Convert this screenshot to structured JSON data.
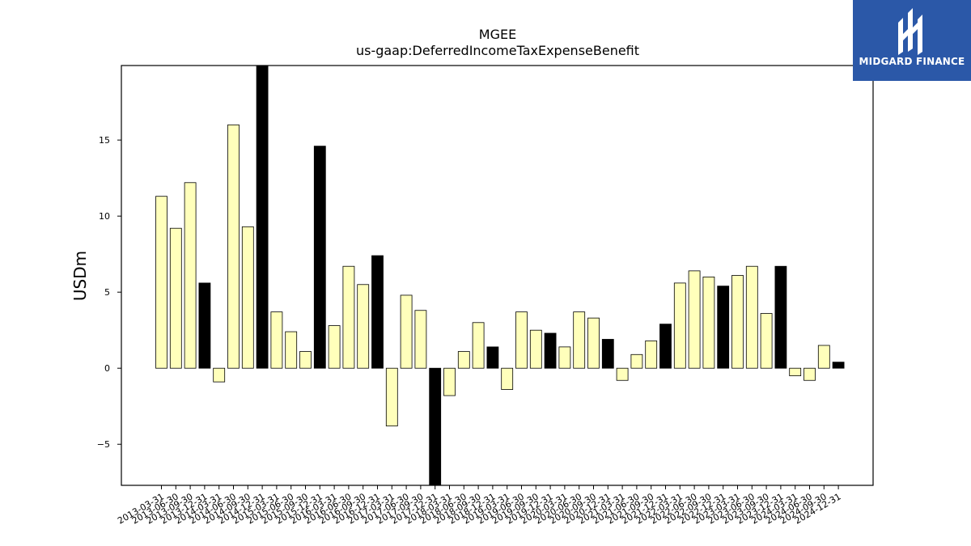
{
  "chart_data": {
    "type": "bar",
    "title": "MGEE",
    "subtitle": "us-gaap:DeferredIncomeTaxExpenseBenefit",
    "ylabel": "USDm",
    "xlabel": "",
    "ylim": [
      -7.7,
      19.9
    ],
    "yticks": [
      -5,
      0,
      5,
      10,
      15
    ],
    "ytick_labels": [
      "−5",
      "0",
      "5",
      "10",
      "15"
    ],
    "grid": false,
    "colors": {
      "quarter": "#ffffbb",
      "annual": "#000000",
      "edge": "#000000"
    },
    "categories": [
      "2013-03-31",
      "2013-06-30",
      "2013-09-30",
      "2013-12-31",
      "2014-03-31",
      "2014-06-30",
      "2014-09-30",
      "2014-12-31",
      "2015-03-31",
      "2015-06-30",
      "2015-09-30",
      "2015-12-31",
      "2016-03-31",
      "2016-06-30",
      "2016-09-30",
      "2016-12-31",
      "2017-03-31",
      "2017-06-30",
      "2017-09-30",
      "2017-12-31",
      "2018-03-31",
      "2018-06-30",
      "2018-09-30",
      "2018-12-31",
      "2019-03-31",
      "2019-06-30",
      "2019-09-30",
      "2019-12-31",
      "2020-03-31",
      "2020-06-30",
      "2020-09-30",
      "2020-12-31",
      "2021-03-31",
      "2021-06-30",
      "2021-09-30",
      "2021-12-31",
      "2022-03-31",
      "2022-06-30",
      "2022-09-30",
      "2022-12-31",
      "2023-03-31",
      "2023-06-30",
      "2023-09-30",
      "2023-12-31",
      "2024-03-31",
      "2024-06-30",
      "2024-09-30",
      "2024-12-31"
    ],
    "values": [
      11.3,
      9.2,
      12.2,
      5.6,
      -0.9,
      16.0,
      9.3,
      20.5,
      3.7,
      2.4,
      1.1,
      14.6,
      2.8,
      6.7,
      5.5,
      7.4,
      -3.8,
      4.8,
      3.8,
      -9.5,
      -1.8,
      1.1,
      3.0,
      1.4,
      -1.4,
      3.7,
      2.5,
      2.3,
      1.4,
      3.7,
      3.3,
      1.9,
      -0.8,
      0.9,
      1.8,
      2.9,
      5.6,
      6.4,
      6.0,
      5.4,
      6.1,
      6.7,
      3.6,
      6.7,
      -0.5,
      -0.8,
      1.5,
      0.4
    ],
    "annual": [
      false,
      false,
      false,
      true,
      false,
      false,
      false,
      true,
      false,
      false,
      false,
      true,
      false,
      false,
      false,
      true,
      false,
      false,
      false,
      true,
      false,
      false,
      false,
      true,
      false,
      false,
      false,
      true,
      false,
      false,
      false,
      true,
      false,
      false,
      false,
      true,
      false,
      false,
      false,
      true,
      false,
      false,
      false,
      true,
      false,
      false,
      false,
      true
    ]
  },
  "logo": {
    "text": "MIDGARD FINANCE",
    "icon": "midgard-logo-icon"
  }
}
